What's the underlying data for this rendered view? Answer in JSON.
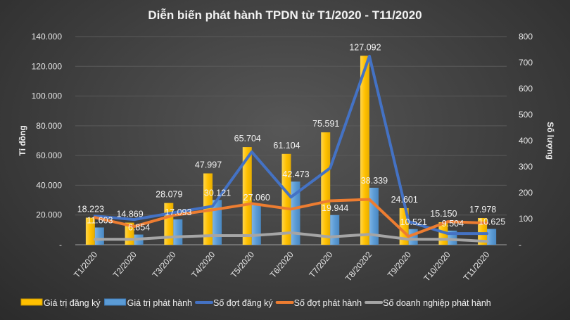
{
  "chart_data": {
    "type": "bar",
    "title": "Diễn biến phát hành TPDN từ T1/2020 - T11/2020",
    "ylabel": "Tỉ đồng",
    "y2label": "Số lượng",
    "ylim": [
      0,
      140000
    ],
    "y2lim": [
      0,
      800
    ],
    "yticks": [
      "-",
      "20.000",
      "40.000",
      "60.000",
      "80.000",
      "100.000",
      "120.000",
      "140.000"
    ],
    "y2ticks": [
      "-",
      "100",
      "200",
      "300",
      "400",
      "500",
      "600",
      "700",
      "800"
    ],
    "grid": true,
    "legend": "bottom",
    "categories": [
      "T1/2020",
      "T2/2020",
      "T3/2020",
      "T4/2020",
      "T5/2020",
      "T6/2020",
      "T7/2020",
      "T8/20202",
      "T9/2020",
      "T10/2020",
      "T11/2020"
    ],
    "series": [
      {
        "name": "Giá trị đăng ký",
        "type": "bar",
        "axis": "left",
        "color": "#FFC000",
        "values": [
          18223,
          14869,
          28079,
          47997,
          65704,
          61104,
          75591,
          127092,
          24601,
          15150,
          17978
        ],
        "labels": [
          "18.223",
          "14.869",
          "28.079",
          "47.997",
          "65.704",
          "61.104",
          "75.591",
          "127.092",
          "24.601",
          "15.150",
          "17.978"
        ]
      },
      {
        "name": "Giá trị phát hành",
        "type": "bar",
        "axis": "left",
        "color": "#5B9BD5",
        "values": [
          11603,
          6854,
          17093,
          30121,
          27060,
          42473,
          19944,
          38339,
          10521,
          9504,
          10625
        ],
        "labels": [
          "11.603",
          "6.854",
          "17.093",
          "30.121",
          "27.060",
          "42.473",
          "19.944",
          "38.339",
          "10.521",
          "9.504",
          "10.625"
        ]
      },
      {
        "name": "Số đợt đăng ký",
        "type": "line",
        "axis": "right",
        "color": "#4472C4",
        "values": [
          110,
          97,
          123,
          148,
          357,
          183,
          295,
          725,
          89,
          43,
          43
        ]
      },
      {
        "name": "Số đợt phát hành",
        "type": "line",
        "axis": "right",
        "color": "#ED7D31",
        "values": [
          105,
          70,
          113,
          134,
          158,
          137,
          169,
          174,
          32,
          89,
          83
        ]
      },
      {
        "name": "Số doanh nghiệp phát hành",
        "type": "line",
        "axis": "right",
        "color": "#A5A5A5",
        "values": [
          21,
          21,
          30,
          35,
          35,
          46,
          30,
          40,
          21,
          21,
          13
        ]
      }
    ]
  }
}
